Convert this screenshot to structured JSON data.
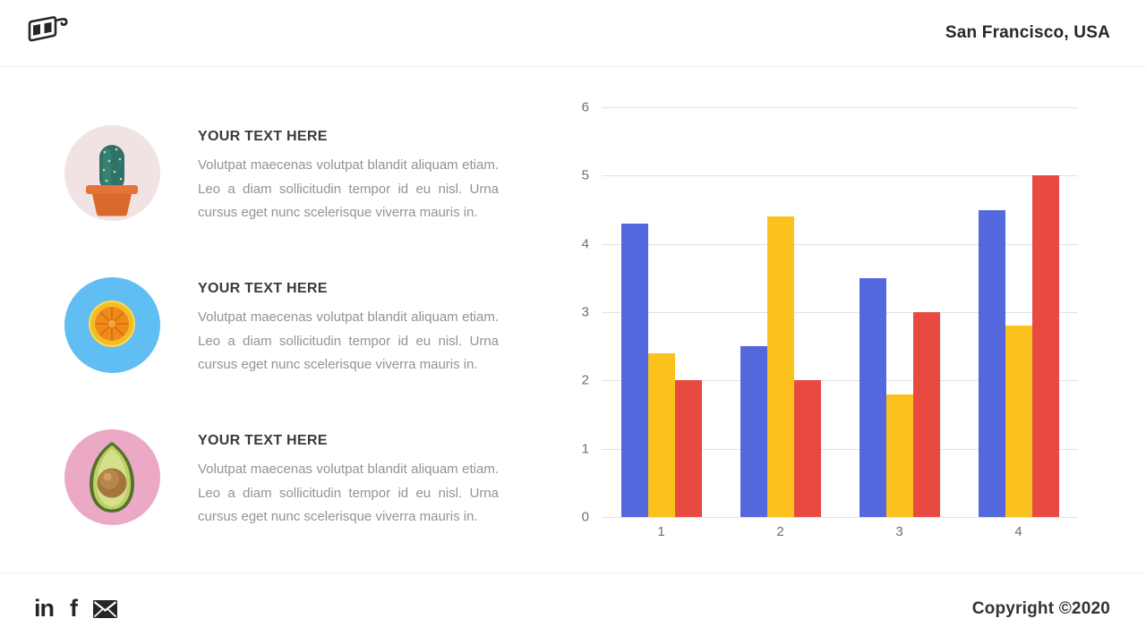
{
  "header": {
    "location": "San Francisco, USA",
    "logo_icon": "3d-glasses-icon"
  },
  "features": [
    {
      "image": "cactus-in-pot-photo",
      "title": "YOUR TEXT HERE",
      "body": "Volutpat maecenas volutpat blandit aliquam etiam. Leo a diam sollicitudin tempor id eu nisl. Urna cursus eget nunc scelerisque viverra mauris in."
    },
    {
      "image": "orange-slice-photo",
      "title": "YOUR TEXT HERE",
      "body": "Volutpat maecenas volutpat blandit aliquam etiam. Leo a diam sollicitudin tempor id eu nisl. Urna cursus eget nunc scelerisque viverra mauris in."
    },
    {
      "image": "avocado-half-photo",
      "title": "YOUR TEXT HERE",
      "body": "Volutpat maecenas volutpat blandit aliquam etiam. Leo a diam sollicitudin tempor id eu nisl. Urna cursus eget nunc scelerisque viverra mauris in."
    }
  ],
  "chart_data": {
    "type": "bar",
    "title": "",
    "xlabel": "",
    "ylabel": "",
    "categories": [
      "1",
      "2",
      "3",
      "4"
    ],
    "series": [
      {
        "name": "series-blue",
        "color": "#5468DE",
        "values": [
          4.3,
          2.5,
          3.5,
          4.5
        ]
      },
      {
        "name": "series-yellow",
        "color": "#FBC21D",
        "values": [
          2.4,
          4.4,
          1.8,
          2.8
        ]
      },
      {
        "name": "series-red",
        "color": "#E84A42",
        "values": [
          2.0,
          2.0,
          3.0,
          5.0
        ]
      }
    ],
    "ylim": [
      0,
      6
    ],
    "yticks": [
      0,
      1,
      2,
      3,
      4,
      5,
      6
    ],
    "grid": true,
    "legend": "none"
  },
  "footer": {
    "icons": [
      {
        "name": "linkedin-icon",
        "glyph": "in"
      },
      {
        "name": "facebook-icon",
        "glyph": "f"
      },
      {
        "name": "email-icon",
        "glyph": ""
      }
    ],
    "copyright": "Copyright ©2020"
  },
  "colors": {
    "bar_blue": "#5468DE",
    "bar_yellow": "#FBC21D",
    "bar_red": "#E84A42",
    "gridline": "#e1e1e1",
    "axis_label": "#6e6e6e",
    "heading_text": "#3a3a3a",
    "body_text": "#939393",
    "dark_ink": "#262626"
  }
}
